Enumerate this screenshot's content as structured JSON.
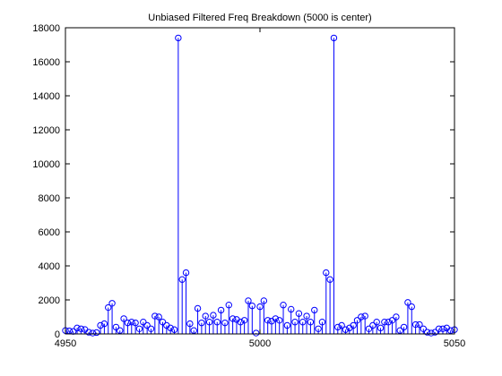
{
  "chart_data": {
    "type": "stem",
    "title": "Unbiased Filtered Freq Breakdown (5000 is center)",
    "xlabel": "",
    "ylabel": "",
    "xlim": [
      4950,
      5050
    ],
    "ylim": [
      0,
      18000
    ],
    "x_ticks": [
      4950,
      5000,
      5050
    ],
    "y_ticks": [
      0,
      2000,
      4000,
      6000,
      8000,
      10000,
      12000,
      14000,
      16000,
      18000
    ],
    "grid": false,
    "legend": "none",
    "x": [
      4950,
      4951,
      4952,
      4953,
      4954,
      4955,
      4956,
      4957,
      4958,
      4959,
      4960,
      4961,
      4962,
      4963,
      4964,
      4965,
      4966,
      4967,
      4968,
      4969,
      4970,
      4971,
      4972,
      4973,
      4974,
      4975,
      4976,
      4977,
      4978,
      4979,
      4980,
      4981,
      4982,
      4983,
      4984,
      4985,
      4986,
      4987,
      4988,
      4989,
      4990,
      4991,
      4992,
      4993,
      4994,
      4995,
      4996,
      4997,
      4998,
      4999,
      5000,
      5001,
      5002,
      5003,
      5004,
      5005,
      5006,
      5007,
      5008,
      5009,
      5010,
      5011,
      5012,
      5013,
      5014,
      5015,
      5016,
      5017,
      5018,
      5019,
      5020,
      5021,
      5022,
      5023,
      5024,
      5025,
      5026,
      5027,
      5028,
      5029,
      5030,
      5031,
      5032,
      5033,
      5034,
      5035,
      5036,
      5037,
      5038,
      5039,
      5040,
      5041,
      5042,
      5043,
      5044,
      5045,
      5046,
      5047,
      5048,
      5049,
      5050
    ],
    "values": [
      200,
      180,
      150,
      350,
      300,
      260,
      100,
      50,
      80,
      500,
      600,
      1550,
      1800,
      400,
      200,
      900,
      650,
      700,
      650,
      300,
      700,
      500,
      300,
      1050,
      1000,
      700,
      500,
      350,
      250,
      17400,
      3200,
      3600,
      600,
      200,
      1500,
      650,
      1050,
      700,
      1100,
      700,
      1400,
      650,
      1700,
      900,
      850,
      700,
      800,
      1950,
      1650,
      50,
      1600,
      1950,
      800,
      750,
      900,
      800,
      1700,
      500,
      1450,
      700,
      1200,
      700,
      1050,
      700,
      1400,
      300,
      700,
      3600,
      3200,
      17400,
      400,
      500,
      250,
      350,
      500,
      800,
      1000,
      1050,
      300,
      500,
      700,
      350,
      700,
      700,
      800,
      1000,
      200,
      400,
      1850,
      1600,
      550,
      550,
      300,
      100,
      50,
      100,
      300,
      300,
      350,
      200,
      250
    ],
    "marker": "circle",
    "color": "#0000ff"
  }
}
